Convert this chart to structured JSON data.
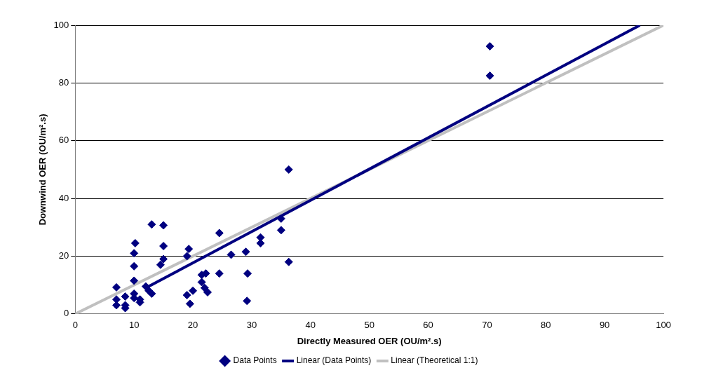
{
  "chart_data": {
    "type": "scatter",
    "xlabel": "Directly Measured OER (OU/m².s)",
    "ylabel": "Downwind OER (OU/m².s)",
    "xlim": [
      0,
      100
    ],
    "ylim": [
      0,
      100
    ],
    "xticks": [
      0,
      10,
      20,
      30,
      40,
      50,
      60,
      70,
      80,
      90,
      100
    ],
    "yticks": [
      0,
      20,
      40,
      60,
      80,
      100
    ],
    "grid": "y",
    "legend": "bottom",
    "series": [
      {
        "name": "Data Points",
        "type": "scatter",
        "marker": "diamond",
        "color": "#000080",
        "x": [
          7,
          7,
          7,
          8.5,
          8.5,
          8.5,
          10.2,
          10,
          10,
          10,
          10,
          10,
          11,
          11,
          12,
          12.5,
          13,
          13,
          14.5,
          15,
          15,
          15,
          19,
          19.3,
          19,
          19.5,
          20,
          21.5,
          21.5,
          22,
          22.2,
          22.5,
          24.5,
          24.5,
          26.5,
          29,
          29.3,
          29.2,
          31.5,
          31.5,
          35,
          35,
          36.3,
          36.3,
          70.5,
          70.5
        ],
        "values": [
          9.2,
          5,
          3,
          6,
          3,
          2,
          24.5,
          21,
          16.5,
          11.5,
          7,
          5.5,
          5,
          4,
          9.5,
          8,
          31,
          7,
          17,
          30.7,
          23.5,
          19,
          20,
          22.5,
          6.5,
          3.5,
          8,
          13.5,
          11,
          9,
          14,
          7.5,
          28,
          14,
          20.5,
          21.5,
          14,
          4.5,
          26.5,
          24.5,
          33,
          29,
          50,
          18,
          92.7,
          82.5
        ]
      },
      {
        "name": "Linear (Data Points)",
        "type": "line",
        "marker": "none",
        "color": "#000080",
        "x": [
          12,
          96
        ],
        "values": [
          9,
          100
        ]
      },
      {
        "name": "Linear (Theoretical 1:1)",
        "type": "line",
        "marker": "none",
        "color": "#c0c0c0",
        "x": [
          0,
          100
        ],
        "values": [
          0,
          100
        ]
      }
    ]
  }
}
